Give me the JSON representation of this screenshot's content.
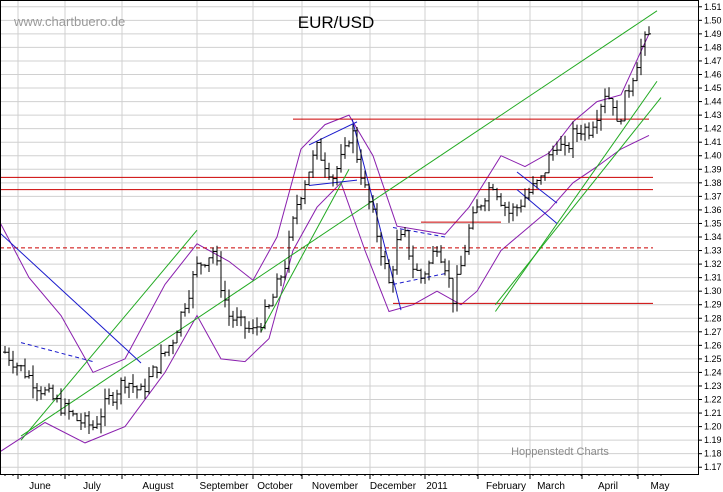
{
  "chart_data": {
    "type": "candlestick-ohlc",
    "title": "EUR/USD",
    "watermark": "www.chartbuero.de",
    "credit": "Hoppenstedt Charts",
    "y_axis": {
      "position": "right",
      "range": [
        1.165,
        1.515
      ],
      "ticks": [
        "1.17",
        "1.18",
        "1.19",
        "1.20",
        "1.21",
        "1.22",
        "1.23",
        "1.24",
        "1.25",
        "1.26",
        "1.27",
        "1.28",
        "1.29",
        "1.30",
        "1.31",
        "1.32",
        "1.33",
        "1.34",
        "1.35",
        "1.36",
        "1.37",
        "1.38",
        "1.39",
        "1.40",
        "1.41",
        "1.42",
        "1.43",
        "1.44",
        "1.45",
        "1.46",
        "1.47",
        "1.48",
        "1.49",
        "1.50",
        "1.51"
      ]
    },
    "x_axis": {
      "labels": [
        "June",
        "July",
        "August",
        "September",
        "October",
        "November",
        "December",
        "2011",
        "February",
        "March",
        "April",
        "May"
      ]
    },
    "grid": true,
    "price_path": [
      [
        0,
        1.255
      ],
      [
        5,
        1.225
      ],
      [
        9,
        1.205
      ],
      [
        11,
        1.2
      ],
      [
        13,
        1.22
      ],
      [
        15,
        1.235
      ],
      [
        17,
        1.225
      ],
      [
        19,
        1.245
      ],
      [
        21,
        1.265
      ],
      [
        22.5,
        1.292
      ],
      [
        24,
        1.318
      ],
      [
        26,
        1.33
      ],
      [
        27,
        1.305
      ],
      [
        28,
        1.282
      ],
      [
        29.5,
        1.275
      ],
      [
        31,
        1.27
      ],
      [
        33,
        1.287
      ],
      [
        35,
        1.32
      ],
      [
        36.5,
        1.365
      ],
      [
        38,
        1.39
      ],
      [
        39,
        1.405
      ],
      [
        40,
        1.395
      ],
      [
        41,
        1.385
      ],
      [
        42.5,
        1.402
      ],
      [
        43.3,
        1.422
      ],
      [
        44,
        1.4
      ],
      [
        45,
        1.375
      ],
      [
        46,
        1.355
      ],
      [
        47,
        1.33
      ],
      [
        48,
        1.305
      ],
      [
        49,
        1.335
      ],
      [
        50,
        1.34
      ],
      [
        51,
        1.318
      ],
      [
        52,
        1.31
      ],
      [
        53,
        1.32
      ],
      [
        54,
        1.335
      ],
      [
        55,
        1.32
      ],
      [
        56,
        1.295
      ],
      [
        57,
        1.318
      ],
      [
        58,
        1.345
      ],
      [
        59,
        1.36
      ],
      [
        60,
        1.372
      ],
      [
        61,
        1.38
      ],
      [
        62,
        1.368
      ],
      [
        63,
        1.358
      ],
      [
        64,
        1.362
      ],
      [
        65.5,
        1.373
      ],
      [
        67,
        1.382
      ],
      [
        68,
        1.398
      ],
      [
        69,
        1.41
      ],
      [
        70,
        1.402
      ],
      [
        71,
        1.415
      ],
      [
        72,
        1.42
      ],
      [
        73,
        1.42
      ],
      [
        74,
        1.432
      ],
      [
        75,
        1.447
      ],
      [
        76,
        1.44
      ],
      [
        76.5,
        1.421
      ],
      [
        77.5,
        1.442
      ],
      [
        78.5,
        1.46
      ],
      [
        79.5,
        1.48
      ],
      [
        80.5,
        1.488
      ]
    ],
    "horizontal_lines": [
      {
        "y": 1.427,
        "style": "solid",
        "color": "#cc0000",
        "from": 36,
        "to": 80.5
      },
      {
        "y": 1.384,
        "style": "solid",
        "color": "#cc0000",
        "from": -1,
        "to": 81
      },
      {
        "y": 1.375,
        "style": "solid",
        "color": "#cc0000",
        "from": -1,
        "to": 81
      },
      {
        "y": 1.351,
        "style": "solid",
        "color": "#cc0000",
        "from": 52,
        "to": 62
      },
      {
        "y": 1.332,
        "style": "dashed",
        "color": "#cc0000",
        "from": -1,
        "to": 81
      },
      {
        "y": 1.291,
        "style": "solid",
        "color": "#cc0000",
        "from": 48.5,
        "to": 81
      }
    ],
    "trend_lines": [
      {
        "color": "#22aa22",
        "points": [
          [
            2,
            1.193
          ],
          [
            81.5,
            1.507
          ]
        ]
      },
      {
        "color": "#22aa22",
        "points": [
          [
            2,
            1.19
          ],
          [
            24,
            1.345
          ]
        ]
      },
      {
        "color": "#22aa22",
        "points": [
          [
            32,
            1.27
          ],
          [
            43,
            1.39
          ]
        ]
      },
      {
        "color": "#22aa22",
        "points": [
          [
            61.3,
            1.285
          ],
          [
            81.5,
            1.455
          ]
        ]
      },
      {
        "color": "#22aa22",
        "points": [
          [
            61.3,
            1.29
          ],
          [
            82,
            1.443
          ]
        ]
      },
      {
        "color": "#1a1acc",
        "points": [
          [
            -1,
            1.345
          ],
          [
            17,
            1.247
          ]
        ]
      },
      {
        "color": "#1a1acc",
        "points": [
          [
            43.4,
            1.427
          ],
          [
            49.5,
            1.286
          ]
        ]
      },
      {
        "color": "#1a1acc",
        "points": [
          [
            38,
            1.408
          ],
          [
            44,
            1.425
          ]
        ]
      },
      {
        "color": "#1a1acc",
        "points": [
          [
            38,
            1.378
          ],
          [
            44,
            1.382
          ]
        ]
      },
      {
        "color": "#1a1acc",
        "points": [
          [
            64,
            1.388
          ],
          [
            69,
            1.365
          ]
        ]
      },
      {
        "color": "#1a1acc",
        "points": [
          [
            64,
            1.375
          ],
          [
            69,
            1.35
          ]
        ]
      }
    ],
    "bollinger_upper": [
      [
        -1,
        1.355
      ],
      [
        3,
        1.31
      ],
      [
        7,
        1.282
      ],
      [
        11,
        1.24
      ],
      [
        15,
        1.25
      ],
      [
        20,
        1.305
      ],
      [
        24,
        1.335
      ],
      [
        28,
        1.322
      ],
      [
        31,
        1.308
      ],
      [
        34,
        1.34
      ],
      [
        37,
        1.405
      ],
      [
        40,
        1.423
      ],
      [
        43,
        1.43
      ],
      [
        46,
        1.4
      ],
      [
        49,
        1.348
      ],
      [
        52,
        1.345
      ],
      [
        55,
        1.342
      ],
      [
        58,
        1.362
      ],
      [
        62,
        1.4
      ],
      [
        65,
        1.392
      ],
      [
        68,
        1.402
      ],
      [
        71,
        1.425
      ],
      [
        74,
        1.44
      ],
      [
        77,
        1.445
      ],
      [
        80.5,
        1.49
      ]
    ],
    "bollinger_lower": [
      [
        -1,
        1.18
      ],
      [
        5,
        1.203
      ],
      [
        10,
        1.188
      ],
      [
        15,
        1.2
      ],
      [
        20,
        1.24
      ],
      [
        24,
        1.282
      ],
      [
        27,
        1.25
      ],
      [
        30,
        1.248
      ],
      [
        33,
        1.265
      ],
      [
        36,
        1.33
      ],
      [
        39,
        1.362
      ],
      [
        42,
        1.38
      ],
      [
        45,
        1.33
      ],
      [
        48,
        1.285
      ],
      [
        51,
        1.29
      ],
      [
        54,
        1.3
      ],
      [
        57,
        1.29
      ],
      [
        59,
        1.3
      ],
      [
        62,
        1.33
      ],
      [
        65,
        1.345
      ],
      [
        68,
        1.36
      ],
      [
        71,
        1.38
      ],
      [
        74,
        1.392
      ],
      [
        77,
        1.405
      ],
      [
        80.5,
        1.415
      ]
    ],
    "dashed_channels": [
      {
        "color": "#1a1acc",
        "points": [
          [
            2,
            1.262
          ],
          [
            11,
            1.248
          ]
        ]
      },
      {
        "color": "#1a1acc",
        "points": [
          [
            48.5,
            1.347
          ],
          [
            55,
            1.34
          ]
        ]
      },
      {
        "color": "#1a1acc",
        "points": [
          [
            48.5,
            1.305
          ],
          [
            55,
            1.313
          ]
        ]
      }
    ],
    "colors": {
      "bars": "#000000",
      "bands": "#8a1fae",
      "trend_green": "#22aa22",
      "trend_blue": "#1a1acc",
      "levels": "#cc0000",
      "grid": "#d0d0d0"
    }
  }
}
